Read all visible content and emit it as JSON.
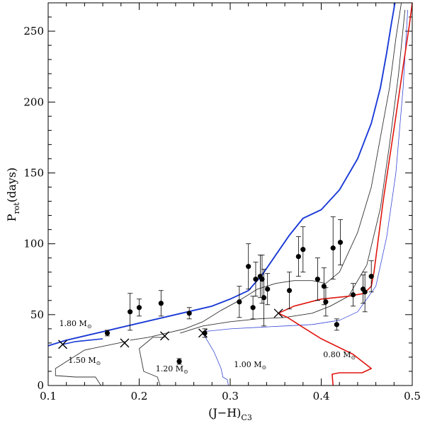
{
  "chart_data": {
    "type": "scatter",
    "xlabel": "(J−H)",
    "xlabel_sub": "C3",
    "ylabel": "P",
    "ylabel_sub": "rot",
    "ylabel_tail": "(days)",
    "xlim": [
      0.1,
      0.5
    ],
    "ylim": [
      0,
      270
    ],
    "xticks": [
      0.1,
      0.2,
      0.3,
      0.4,
      0.5
    ],
    "yticks": [
      0,
      50,
      100,
      150,
      200,
      250
    ],
    "x_tick_labels": [
      "0.1",
      "0.2",
      "0.3",
      "0.4",
      "0.5"
    ],
    "y_tick_labels": [
      "0",
      "50",
      "100",
      "150",
      "200",
      "250"
    ],
    "annotations": [
      {
        "text": "1.80 M",
        "sym": "⊙",
        "x": 0.13,
        "y": 42
      },
      {
        "text": "1.50 M",
        "sym": "⊙",
        "x": 0.14,
        "y": 16
      },
      {
        "text": "1.20 M",
        "sym": "⊙",
        "x": 0.236,
        "y": 10
      },
      {
        "text": "1.00 M",
        "sym": "⊙",
        "x": 0.322,
        "y": 13
      },
      {
        "text": "0.80 M",
        "sym": "⊙",
        "x": 0.42,
        "y": 20
      }
    ],
    "points": [
      {
        "x": 0.165,
        "y": 37,
        "err": 2
      },
      {
        "x": 0.19,
        "y": 52,
        "err": 13
      },
      {
        "x": 0.2,
        "y": 55,
        "err": 6
      },
      {
        "x": 0.224,
        "y": 58,
        "err": 9
      },
      {
        "x": 0.244,
        "y": 17,
        "err": 2
      },
      {
        "x": 0.255,
        "y": 51,
        "err": 4
      },
      {
        "x": 0.272,
        "y": 37,
        "err": 3
      },
      {
        "x": 0.31,
        "y": 59,
        "err": 11
      },
      {
        "x": 0.32,
        "y": 84,
        "err": 16
      },
      {
        "x": 0.325,
        "y": 55,
        "err": 8
      },
      {
        "x": 0.328,
        "y": 75,
        "err": 12
      },
      {
        "x": 0.333,
        "y": 77,
        "err": 15
      },
      {
        "x": 0.335,
        "y": 75,
        "err": 17
      },
      {
        "x": 0.337,
        "y": 62,
        "err": 20
      },
      {
        "x": 0.341,
        "y": 68,
        "err": 11
      },
      {
        "x": 0.365,
        "y": 67,
        "err": 13
      },
      {
        "x": 0.375,
        "y": 91,
        "err": 14
      },
      {
        "x": 0.38,
        "y": 96,
        "err": 16
      },
      {
        "x": 0.396,
        "y": 75,
        "err": 15
      },
      {
        "x": 0.403,
        "y": 70,
        "err": 13
      },
      {
        "x": 0.405,
        "y": 59,
        "err": 10
      },
      {
        "x": 0.413,
        "y": 97,
        "err": 22
      },
      {
        "x": 0.417,
        "y": 43,
        "err": 4
      },
      {
        "x": 0.421,
        "y": 101,
        "err": 16
      },
      {
        "x": 0.435,
        "y": 64,
        "err": 8
      },
      {
        "x": 0.446,
        "y": 68,
        "err": 10
      },
      {
        "x": 0.448,
        "y": 66,
        "err": 14
      },
      {
        "x": 0.455,
        "y": 77,
        "err": 11
      }
    ],
    "crosses": [
      {
        "x": 0.116,
        "y": 29
      },
      {
        "x": 0.184,
        "y": 30
      },
      {
        "x": 0.228,
        "y": 35
      },
      {
        "x": 0.27,
        "y": 37
      },
      {
        "x": 0.353,
        "y": 51
      }
    ],
    "series": [
      {
        "name": "1.80 M⊙ (upper blue)",
        "color": "#1a3ad6",
        "width": 1.9,
        "x": [
          0.1,
          0.12,
          0.14,
          0.16,
          0.18,
          0.2,
          0.22,
          0.24,
          0.26,
          0.28,
          0.3,
          0.32,
          0.335,
          0.35,
          0.365,
          0.38,
          0.4,
          0.42,
          0.44,
          0.455,
          0.465,
          0.472,
          0.477,
          0.481
        ],
        "y": [
          28,
          32,
          35,
          38,
          41,
          44,
          47,
          50,
          53,
          56,
          61,
          67,
          78,
          92,
          106,
          118,
          124,
          138,
          160,
          185,
          210,
          235,
          255,
          270
        ]
      },
      {
        "name": "1.50 M⊙ (black)",
        "color": "#333333",
        "width": 0.9,
        "x": [
          0.19,
          0.21,
          0.23,
          0.25,
          0.27,
          0.29,
          0.31,
          0.33,
          0.35,
          0.37,
          0.39,
          0.405,
          0.42,
          0.44,
          0.455,
          0.465,
          0.475,
          0.482,
          0.488
        ],
        "y": [
          32,
          34,
          37,
          40,
          45,
          53,
          60,
          68,
          72,
          74,
          74,
          72,
          80,
          108,
          140,
          175,
          210,
          245,
          270
        ]
      },
      {
        "name": "1.20 M⊙ (black)",
        "color": "#333333",
        "width": 0.9,
        "x": [
          0.245,
          0.27,
          0.3,
          0.33,
          0.36,
          0.39,
          0.41,
          0.43,
          0.45,
          0.465,
          0.475,
          0.485,
          0.492
        ],
        "y": [
          37,
          42,
          45,
          47,
          48,
          51,
          56,
          63,
          85,
          125,
          170,
          220,
          265
        ]
      },
      {
        "name": "1.00 M⊙ (thin blue)",
        "color": "#3848d6",
        "width": 0.8,
        "x": [
          0.27,
          0.3,
          0.33,
          0.36,
          0.39,
          0.42,
          0.44,
          0.46,
          0.472,
          0.482,
          0.49,
          0.495
        ],
        "y": [
          38,
          40,
          41,
          42,
          43,
          46,
          52,
          70,
          105,
          150,
          210,
          265
        ]
      },
      {
        "name": "1.50 M⊙ track",
        "color": "#333333",
        "width": 0.9,
        "x": [
          0.185,
          0.14,
          0.108,
          0.108,
          0.13,
          0.152,
          0.158
        ],
        "y": [
          31,
          25,
          12,
          7,
          6,
          6,
          0
        ]
      },
      {
        "name": "1.20 M⊙ track",
        "color": "#333333",
        "width": 0.9,
        "x": [
          0.228,
          0.215,
          0.2,
          0.205,
          0.22,
          0.223
        ],
        "y": [
          34,
          34,
          26,
          10,
          6,
          0
        ]
      },
      {
        "name": "1.00 M⊙ track",
        "color": "#3848d6",
        "width": 0.8,
        "x": [
          0.27,
          0.282,
          0.29,
          0.292,
          0.297,
          0.298
        ],
        "y": [
          37,
          24,
          12,
          6,
          4,
          0
        ]
      },
      {
        "name": "1.80 M⊙ start",
        "color": "#1a3ad6",
        "width": 1.6,
        "x": [
          0.116,
          0.13,
          0.145,
          0.16
        ],
        "y": [
          29,
          31,
          32,
          33
        ]
      },
      {
        "name": "0.80 M⊙ (red)",
        "color": "#e0150e",
        "width": 1.6,
        "x": [
          0.413,
          0.412,
          0.42,
          0.445,
          0.455,
          0.435,
          0.4,
          0.38,
          0.363,
          0.353,
          0.37,
          0.4,
          0.43,
          0.447,
          0.455,
          0.458,
          0.462,
          0.468,
          0.475,
          0.482,
          0.49,
          0.497,
          0.5
        ],
        "y": [
          0,
          8,
          9,
          9,
          12,
          22,
          33,
          41,
          48,
          51,
          56,
          61,
          63,
          65,
          70,
          80,
          100,
          130,
          160,
          190,
          225,
          255,
          270
        ]
      }
    ]
  }
}
